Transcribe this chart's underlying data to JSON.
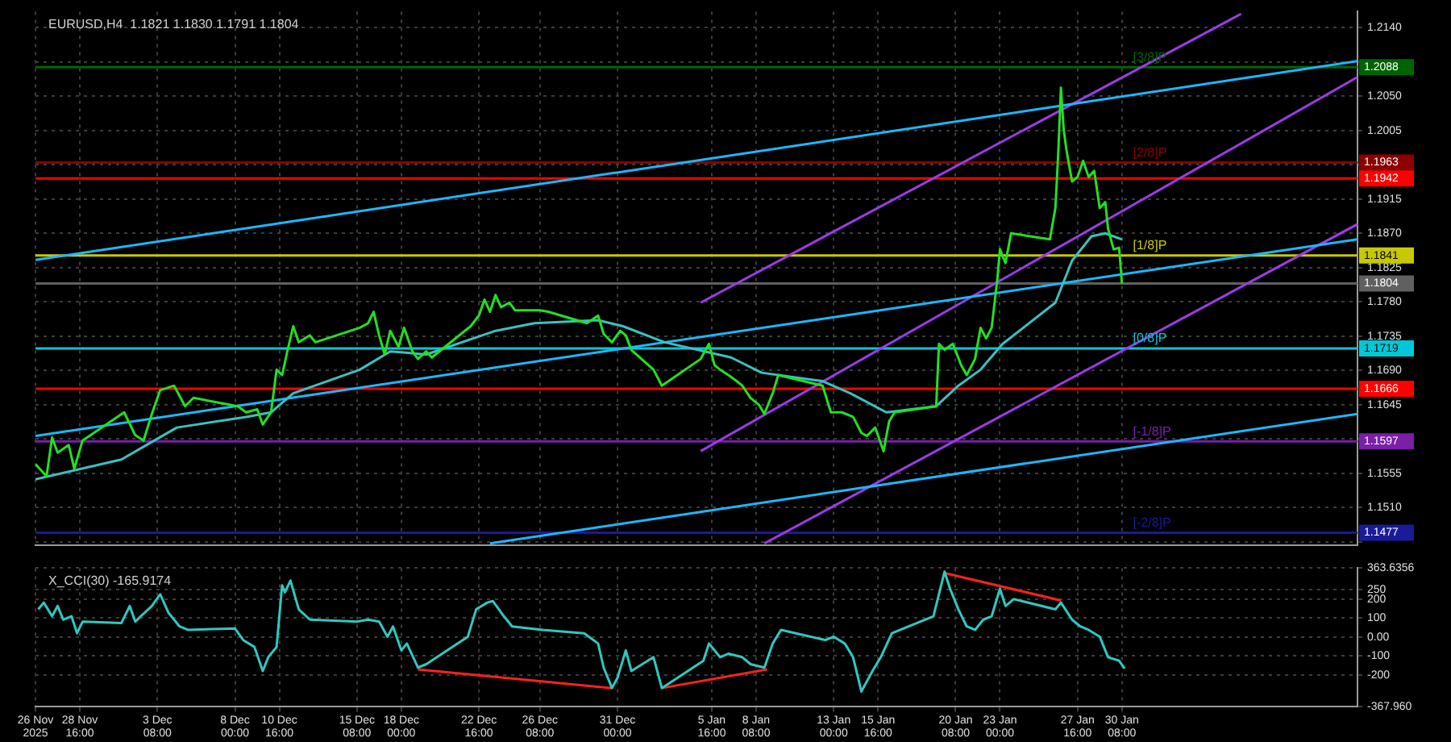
{
  "chart_data": [
    {
      "type": "line",
      "title": "EURUSD,H4  1.1821 1.1830 1.1791 1.1804",
      "xlim": [
        "2025-11-26T00:00",
        "2026-02-13T12:00"
      ],
      "xticks": [
        {
          "value": "2025-11-26T00:00",
          "label": null
        },
        {
          "value": "2025-11-28T16:00",
          "label": null
        },
        {
          "value": "2025-12-03T08:00",
          "label": null
        },
        {
          "value": "2025-12-08T00:00",
          "label": null
        },
        {
          "value": "2025-12-10T16:00",
          "label": null
        },
        {
          "value": "2025-12-15T08:00",
          "label": null
        },
        {
          "value": "2025-12-18T00:00",
          "label": null
        },
        {
          "value": "2025-12-22T16:00",
          "label": null
        },
        {
          "value": "2025-12-26T08:00",
          "label": null
        },
        {
          "value": "2025-12-31T00:00",
          "label": null
        },
        {
          "value": "2026-01-05T16:00",
          "label": null
        },
        {
          "value": "2026-01-08T08:00",
          "label": null
        },
        {
          "value": "2026-01-13T00:00",
          "label": null
        },
        {
          "value": "2026-01-15T16:00",
          "label": null
        },
        {
          "value": "2026-01-20T08:00",
          "label": null
        },
        {
          "value": "2026-01-23T00:00",
          "label": null
        },
        {
          "value": "2026-01-27T16:00",
          "label": null
        },
        {
          "value": "2026-01-30T08:00",
          "label": null
        }
      ],
      "ylim": [
        1.1461,
        1.2161
      ],
      "yticks": [
        {
          "value": 1.1465,
          "label": null
        },
        {
          "value": 1.151,
          "label": "1.1510"
        },
        {
          "value": 1.1555,
          "label": "1.1555"
        },
        {
          "value": 1.16,
          "label": null
        },
        {
          "value": 1.1645,
          "label": "1.1645"
        },
        {
          "value": 1.169,
          "label": "1.1690"
        },
        {
          "value": 1.1735,
          "label": "1.1735"
        },
        {
          "value": 1.178,
          "label": "1.1780"
        },
        {
          "value": 1.1825,
          "label": "1.1825"
        },
        {
          "value": 1.187,
          "label": "1.1870"
        },
        {
          "value": 1.1915,
          "label": "1.1915"
        },
        {
          "value": 1.196,
          "label": null
        },
        {
          "value": 1.2005,
          "label": "1.2005"
        },
        {
          "value": 1.205,
          "label": "1.2050"
        },
        {
          "value": 1.2095,
          "label": null
        },
        {
          "value": 1.214,
          "label": "1.2140"
        }
      ],
      "annotations": [
        {
          "text": "[3/8]P",
          "x": "2026-01-31T00:00",
          "y": 1.2088
        },
        {
          "text": "[2/8]P",
          "x": "2026-01-31T00:00",
          "y": 1.1963
        },
        {
          "text": "[1/8]P",
          "x": "2026-01-31T00:00",
          "y": 1.1841
        },
        {
          "text": "[0/8]P",
          "x": "2026-01-31T00:00",
          "y": 1.1719
        },
        {
          "text": "[-1/8]P",
          "x": "2026-01-31T00:00",
          "y": 1.1597
        },
        {
          "text": "[-2/8]P",
          "x": "2026-01-31T00:00",
          "y": 1.1477
        }
      ],
      "tick_labels": "y",
      "grid": true,
      "ref_lines": [
        {
          "axis": "y",
          "value": 1.2088,
          "label": "1.2088",
          "color": "#006400"
        },
        {
          "axis": "y",
          "value": 1.1963,
          "label": "1.1963",
          "color": "#8b0000"
        },
        {
          "axis": "y",
          "value": 1.1942,
          "label": "1.1942",
          "color": "#ff0000"
        },
        {
          "axis": "y",
          "value": 1.1841,
          "label": "1.1841",
          "color": "#c8c800"
        },
        {
          "axis": "y",
          "value": 1.1804,
          "label": "1.1804",
          "color": "#606060"
        },
        {
          "axis": "y",
          "value": 1.1719,
          "label": "1.1719",
          "color": "#00c8d8"
        },
        {
          "axis": "y",
          "value": 1.1666,
          "label": "1.1666",
          "color": "#ff0000"
        },
        {
          "axis": "y",
          "value": 1.1597,
          "label": "1.1597",
          "color": "#7a1fa8"
        },
        {
          "axis": "y",
          "value": 1.1477,
          "label": "1.1477",
          "color": "#1a1a9a"
        }
      ],
      "series": [
        {
          "color": "#22e022",
          "x": [
            "2025-11-26T00:00",
            "2025-11-26T16:00",
            "2025-11-27T00:00",
            "2025-11-27T08:00",
            "2025-11-28T00:00",
            "2025-11-28T08:00",
            "2025-11-28T20:00",
            "2025-12-01T08:00",
            "2025-12-02T00:00",
            "2025-12-02T12:00",
            "2025-12-03T00:00",
            "2025-12-03T12:00",
            "2025-12-04T08:00",
            "2025-12-05T00:00",
            "2025-12-05T12:00",
            "2025-12-08T04:00",
            "2025-12-08T16:00",
            "2025-12-09T08:00",
            "2025-12-09T16:00",
            "2025-12-10T04:00",
            "2025-12-10T12:00",
            "2025-12-10T20:00",
            "2025-12-11T04:00",
            "2025-12-11T12:00",
            "2025-12-11T20:00",
            "2025-12-12T12:00",
            "2025-12-12T20:00",
            "2025-12-15T12:00",
            "2025-12-16T00:00",
            "2025-12-16T08:00",
            "2025-12-16T16:00",
            "2025-12-17T00:00",
            "2025-12-17T08:00",
            "2025-12-17T20:00",
            "2025-12-18T04:00",
            "2025-12-18T16:00",
            "2025-12-19T00:00",
            "2025-12-19T12:00",
            "2025-12-19T20:00",
            "2025-12-22T04:00",
            "2025-12-22T16:00",
            "2025-12-23T00:00",
            "2025-12-23T08:00",
            "2025-12-23T16:00",
            "2025-12-24T00:00",
            "2025-12-24T12:00",
            "2025-12-24T20:00",
            "2025-12-26T08:00",
            "2025-12-26T20:00",
            "2025-12-29T04:00",
            "2025-12-29T20:00",
            "2025-12-30T04:00",
            "2025-12-30T16:00",
            "2025-12-31T04:00",
            "2025-12-31T12:00",
            "2025-12-31T20:00",
            "2026-01-02T04:00",
            "2026-01-02T16:00",
            "2026-01-05T00:00",
            "2026-01-05T12:00",
            "2026-01-05T20:00",
            "2026-01-06T04:00",
            "2026-01-06T16:00",
            "2026-01-07T04:00",
            "2026-01-07T12:00",
            "2026-01-08T00:00",
            "2026-01-08T12:00",
            "2026-01-08T20:00",
            "2026-01-09T08:00",
            "2026-01-09T16:00",
            "2026-01-12T08:00",
            "2026-01-12T20:00",
            "2026-01-13T12:00",
            "2026-01-14T04:00",
            "2026-01-14T16:00",
            "2026-01-15T00:00",
            "2026-01-15T12:00",
            "2026-01-16T00:00",
            "2026-01-16T08:00",
            "2026-01-16T16:00",
            "2026-01-19T04:00",
            "2026-01-19T08:00",
            "2026-01-19T16:00",
            "2026-01-20T04:00",
            "2026-01-20T16:00",
            "2026-01-21T00:00",
            "2026-01-21T12:00",
            "2026-01-21T20:00",
            "2026-01-22T04:00",
            "2026-01-22T12:00",
            "2026-01-22T20:00",
            "2026-01-23T00:00",
            "2026-01-23T08:00",
            "2026-01-23T16:00",
            "2026-01-26T00:00",
            "2026-01-26T08:00",
            "2026-01-26T12:00",
            "2026-01-26T16:00",
            "2026-01-26T20:00",
            "2026-01-27T00:00",
            "2026-01-27T08:00",
            "2026-01-27T16:00",
            "2026-01-28T00:00",
            "2026-01-28T08:00",
            "2026-01-28T16:00",
            "2026-01-29T00:00",
            "2026-01-29T08:00",
            "2026-01-29T12:00",
            "2026-01-29T20:00",
            "2026-01-30T04:00",
            "2026-01-30T08:00"
          ],
          "values": [
            1.1567,
            1.1551,
            1.1602,
            1.1582,
            1.1592,
            1.1561,
            1.1598,
            1.1635,
            1.1605,
            1.1598,
            1.1633,
            1.1664,
            1.167,
            1.1643,
            1.1654,
            1.1643,
            1.1635,
            1.1639,
            1.1619,
            1.1635,
            1.1691,
            1.1684,
            1.1717,
            1.1748,
            1.1727,
            1.1736,
            1.1727,
            1.1746,
            1.1752,
            1.1767,
            1.1736,
            1.1711,
            1.1742,
            1.1721,
            1.1746,
            1.1715,
            1.1705,
            1.1715,
            1.1707,
            1.1748,
            1.1762,
            1.1783,
            1.1767,
            1.1789,
            1.1773,
            1.1779,
            1.1769,
            1.1769,
            1.1767,
            1.1752,
            1.1762,
            1.1738,
            1.1727,
            1.1742,
            1.1736,
            1.1717,
            1.1691,
            1.167,
            1.1705,
            1.1725,
            1.1697,
            1.1691,
            1.1684,
            1.1676,
            1.167,
            1.1654,
            1.1645,
            1.1633,
            1.166,
            1.1684,
            1.167,
            1.1635,
            1.1635,
            1.1629,
            1.1608,
            1.1604,
            1.1615,
            1.1584,
            1.1623,
            1.1635,
            1.1643,
            1.1725,
            1.1717,
            1.1725,
            1.1697,
            1.1684,
            1.1705,
            1.1746,
            1.1732,
            1.1746,
            1.1808,
            1.1849,
            1.1831,
            1.187,
            1.1862,
            1.1903,
            1.1973,
            1.2061,
            1.2006,
            1.1979,
            1.1938,
            1.1944,
            1.1965,
            1.1944,
            1.1952,
            1.1903,
            1.1911,
            1.1876,
            1.1849,
            1.1851,
            1.1804
          ]
        },
        {
          "color": "#3cc0c0",
          "x": [
            "2025-11-26T00:00",
            "2025-12-01T04:00",
            "2025-12-02T16:00",
            "2025-12-04T12:00",
            "2025-12-08T16:00",
            "2025-12-10T04:00",
            "2025-12-11T12:00",
            "2025-12-15T12:00",
            "2025-12-17T08:00",
            "2025-12-19T12:00",
            "2025-12-23T16:00",
            "2025-12-26T00:00",
            "2025-12-29T20:00",
            "2025-12-31T08:00",
            "2026-01-02T20:00",
            "2026-01-06T20:00",
            "2026-01-08T16:00",
            "2026-01-12T08:00",
            "2026-01-14T00:00",
            "2026-01-16T04:00",
            "2026-01-19T04:00",
            "2026-01-20T12:00",
            "2026-01-21T20:00",
            "2026-01-23T04:00",
            "2026-01-26T08:00",
            "2026-01-27T08:00",
            "2026-01-28T12:00",
            "2026-01-29T08:00",
            "2026-01-30T08:00"
          ],
          "values": [
            1.1547,
            1.1573,
            1.1592,
            1.1615,
            1.1629,
            1.1635,
            1.166,
            1.1691,
            1.1715,
            1.1711,
            1.1742,
            1.1752,
            1.1756,
            1.1748,
            1.1727,
            1.1707,
            1.1687,
            1.1676,
            1.166,
            1.1635,
            1.1643,
            1.167,
            1.1691,
            1.1725,
            1.1779,
            1.1834,
            1.1866,
            1.187,
            1.1862
          ]
        },
        {
          "color": "#1ab8ff",
          "x": [
            "2025-11-26T00:00",
            "2026-02-13T12:00"
          ],
          "values": [
            1.1835,
            1.2096
          ]
        },
        {
          "color": "#1ab8ff",
          "x": [
            "2025-11-26T00:00",
            "2026-02-13T12:00"
          ],
          "values": [
            1.1604,
            1.1862
          ]
        },
        {
          "color": "#1ab8ff",
          "x": [
            "2025-12-23T08:00",
            "2026-02-13T12:00"
          ],
          "values": [
            1.1463,
            1.1633
          ]
        },
        {
          "color": "#9a3ce6",
          "x": [
            "2026-01-05T00:00",
            "2026-02-06T12:00"
          ],
          "values": [
            1.1779,
            1.2158
          ]
        },
        {
          "color": "#9a3ce6",
          "x": [
            "2026-01-05T00:00",
            "2026-02-13T12:00"
          ],
          "values": [
            1.1584,
            1.2075
          ]
        },
        {
          "color": "#9a3ce6",
          "x": [
            "2026-01-08T20:00",
            "2026-02-13T12:00"
          ],
          "values": [
            1.1463,
            1.1882
          ]
        }
      ]
    },
    {
      "type": "line",
      "title": "X_CCI(30) -165.9174",
      "xlim": [
        "2025-11-26T00:00",
        "2026-02-13T12:00"
      ],
      "xticks": [
        {
          "value": "2025-11-26T00:00",
          "label": "26 Nov 2025"
        },
        {
          "value": "2025-11-28T16:00",
          "label": "28 Nov 16:00"
        },
        {
          "value": "2025-12-03T08:00",
          "label": "3 Dec 08:00"
        },
        {
          "value": "2025-12-08T00:00",
          "label": "8 Dec 00:00"
        },
        {
          "value": "2025-12-10T16:00",
          "label": "10 Dec 16:00"
        },
        {
          "value": "2025-12-15T08:00",
          "label": "15 Dec 08:00"
        },
        {
          "value": "2025-12-18T00:00",
          "label": "18 Dec 00:00"
        },
        {
          "value": "2025-12-22T16:00",
          "label": "22 Dec 16:00"
        },
        {
          "value": "2025-12-26T08:00",
          "label": "26 Dec 08:00"
        },
        {
          "value": "2025-12-31T00:00",
          "label": "31 Dec 00:00"
        },
        {
          "value": "2026-01-05T16:00",
          "label": "5 Jan 16:00"
        },
        {
          "value": "2026-01-08T08:00",
          "label": "8 Jan 08:00"
        },
        {
          "value": "2026-01-13T00:00",
          "label": "13 Jan 00:00"
        },
        {
          "value": "2026-01-15T16:00",
          "label": "15 Jan 16:00"
        },
        {
          "value": "2026-01-20T08:00",
          "label": "20 Jan 08:00"
        },
        {
          "value": "2026-01-23T00:00",
          "label": "23 Jan 00:00"
        },
        {
          "value": "2026-01-27T16:00",
          "label": "27 Jan 16:00"
        },
        {
          "value": "2026-01-30T08:00",
          "label": "30 Jan 08:00"
        }
      ],
      "ylim": [
        -367.96,
        363.6356
      ],
      "yticks": [
        {
          "value": -367.96,
          "label": "-367.960"
        },
        -200,
        -100,
        {
          "value": 0,
          "label": "0.00"
        },
        100,
        200,
        250,
        {
          "value": 363.6356,
          "label": "363.6356"
        }
      ],
      "grid": true,
      "series": [
        {
          "color": "#30c8c0",
          "x": [
            "2025-11-26T04:00",
            "2025-11-26T12:00",
            "2025-11-27T00:00",
            "2025-11-27T08:00",
            "2025-11-27T16:00",
            "2025-11-28T04:00",
            "2025-11-28T12:00",
            "2025-11-28T20:00",
            "2025-12-01T04:00",
            "2025-12-01T16:00",
            "2025-12-02T00:00",
            "2025-12-02T08:00",
            "2025-12-03T00:00",
            "2025-12-03T12:00",
            "2025-12-04T00:00",
            "2025-12-04T16:00",
            "2025-12-05T04:00",
            "2025-12-08T00:00",
            "2025-12-08T12:00",
            "2025-12-09T04:00",
            "2025-12-09T16:00",
            "2025-12-10T00:00",
            "2025-12-10T12:00",
            "2025-12-10T20:00",
            "2025-12-11T00:00",
            "2025-12-11T08:00",
            "2025-12-11T20:00",
            "2025-12-12T12:00",
            "2025-12-15T08:00",
            "2025-12-16T00:00",
            "2025-12-16T16:00",
            "2025-12-17T04:00",
            "2025-12-17T12:00",
            "2025-12-18T00:00",
            "2025-12-18T08:00",
            "2025-12-19T00:00",
            "2025-12-19T12:00",
            "2025-12-22T00:00",
            "2025-12-22T12:00",
            "2025-12-23T04:00",
            "2025-12-23T12:00",
            "2025-12-24T04:00",
            "2025-12-24T16:00",
            "2025-12-26T12:00",
            "2025-12-29T00:00",
            "2025-12-29T20:00",
            "2025-12-30T04:00",
            "2025-12-30T16:00",
            "2025-12-31T00:00",
            "2025-12-31T12:00",
            "2025-12-31T20:00",
            "2026-01-02T04:00",
            "2026-01-02T16:00",
            "2026-01-05T04:00",
            "2026-01-05T12:00",
            "2026-01-06T04:00",
            "2026-01-06T16:00",
            "2026-01-07T12:00",
            "2026-01-08T00:00",
            "2026-01-08T20:00",
            "2026-01-09T08:00",
            "2026-01-09T20:00",
            "2026-01-12T12:00",
            "2026-01-13T00:00",
            "2026-01-13T16:00",
            "2026-01-14T04:00",
            "2026-01-14T16:00",
            "2026-01-15T08:00",
            "2026-01-15T20:00",
            "2026-01-16T12:00",
            "2026-01-19T00:00",
            "2026-01-19T16:00",
            "2026-01-20T00:00",
            "2026-01-20T12:00",
            "2026-01-21T00:00",
            "2026-01-21T12:00",
            "2026-01-22T00:00",
            "2026-01-22T12:00",
            "2026-01-23T00:00",
            "2026-01-23T08:00",
            "2026-01-23T20:00",
            "2026-01-26T08:00",
            "2026-01-26T16:00",
            "2026-01-27T08:00",
            "2026-01-27T20:00",
            "2026-01-28T08:00",
            "2026-01-29T00:00",
            "2026-01-29T12:00",
            "2026-01-30T04:00",
            "2026-01-30T12:00"
          ],
          "values": [
            146,
            182,
            110,
            164,
            92,
            110,
            20,
            81,
            74,
            164,
            81,
            110,
            164,
            226,
            128,
            56,
            38,
            45,
            -16,
            -52,
            -179,
            -106,
            -52,
            273,
            236,
            298,
            146,
            92,
            81,
            92,
            81,
            2,
            56,
            -70,
            -34,
            -161,
            -143,
            2,
            146,
            182,
            190,
            110,
            56,
            38,
            20,
            -34,
            -161,
            -269,
            -215,
            -70,
            -179,
            -106,
            -269,
            -125,
            -34,
            -106,
            -88,
            -106,
            -143,
            -161,
            -34,
            38,
            -16,
            2,
            -34,
            -106,
            -287,
            -179,
            -106,
            20,
            110,
            345,
            255,
            146,
            56,
            38,
            92,
            110,
            255,
            164,
            200,
            146,
            182,
            92,
            56,
            38,
            2,
            -106,
            -125,
            -166
          ]
        },
        {
          "color": "#ff2020",
          "x": [
            "2025-12-19T00:00",
            "2025-12-30T16:00"
          ],
          "values": [
            -171,
            -269
          ]
        },
        {
          "color": "#ff2020",
          "x": [
            "2026-01-02T16:00",
            "2026-01-09T00:00"
          ],
          "values": [
            -269,
            -171
          ]
        },
        {
          "color": "#ff2020",
          "x": [
            "2026-01-19T16:00",
            "2026-01-26T16:00"
          ],
          "values": [
            338,
            193
          ]
        }
      ]
    }
  ]
}
